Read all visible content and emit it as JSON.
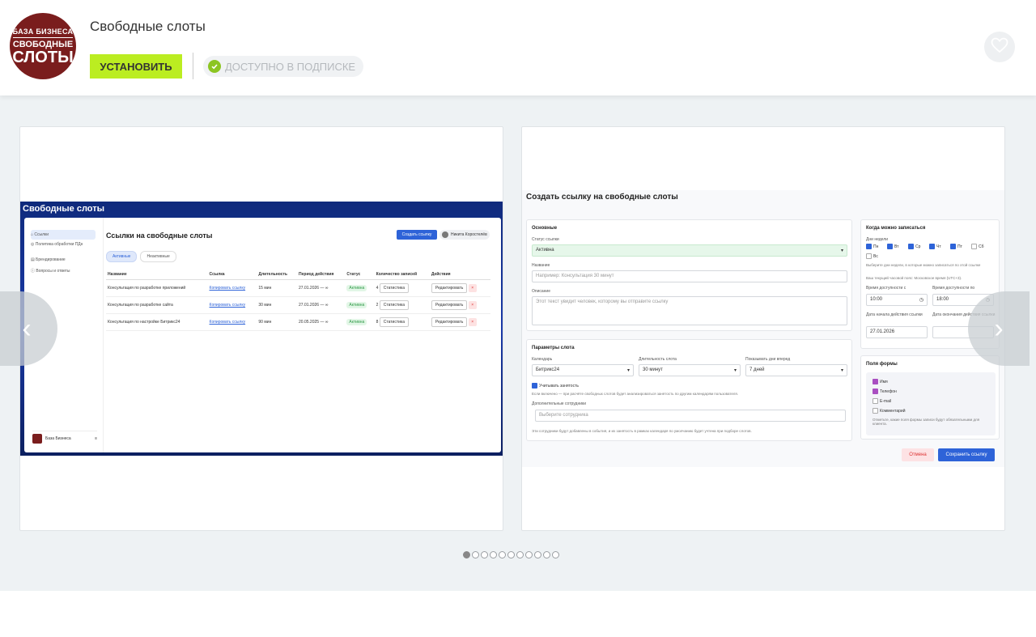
{
  "app": {
    "logo_line1": "БАЗА БИЗНЕСА",
    "logo_line2": "СВОБОДНЫЕ",
    "logo_line3": "СЛОТЫ",
    "title": "Свободные слоты",
    "install_label": "УСТАНОВИТЬ",
    "subscription_label": "ДОСТУПНО В ПОДПИСКЕ"
  },
  "gallery": {
    "dots_count": 11,
    "active_dot": 0
  },
  "slide1": {
    "window_title": "Свободные слоты",
    "sidebar": [
      {
        "label": "Ссылки"
      },
      {
        "label": "Политика обработки ПДн"
      },
      {
        "label": "Брендирование"
      },
      {
        "label": "Вопросы и ответы"
      }
    ],
    "brand_label": "База Бизнеса",
    "heading": "Ссылки на свободные слоты",
    "create_label": "Создать ссылку",
    "user_name": "Никита Коростелёв",
    "tabs": [
      "Активные",
      "Неактивные"
    ],
    "columns": [
      "Название",
      "Ссылка",
      "Длительность",
      "Период действия",
      "Статус",
      "Количество записей",
      "Действия"
    ],
    "rows": [
      {
        "name": "Консультация по разработке приложений",
        "link": "Копировать ссылку",
        "duration": "15 мин",
        "period": "27.01.2026 — ∞",
        "status": "Активна",
        "count": "4",
        "stats": "Статистика",
        "edit": "Редактировать"
      },
      {
        "name": "Консультация по разработке сайта",
        "link": "Копировать ссылку",
        "duration": "30 мин",
        "period": "27.01.2026 — ∞",
        "status": "Активна",
        "count": "2",
        "stats": "Статистика",
        "edit": "Редактировать"
      },
      {
        "name": "Консультация по настройке Битрикс24",
        "link": "Копировать ссылку",
        "duration": "90 мин",
        "period": "20.05.2025 — ∞",
        "status": "Активна",
        "count": "8",
        "stats": "Статистика",
        "edit": "Редактировать"
      }
    ]
  },
  "slide2": {
    "heading": "Создать ссылку на свободные слоты",
    "basic_title": "Основные",
    "status_label": "Статус ссылки",
    "status_value": "Активна",
    "name_label": "Название",
    "name_placeholder": "Например: Консультация 30 минут",
    "desc_label": "Описание",
    "desc_placeholder": "Этот текст увидит человек, которому вы отправите ссылку",
    "params_title": "Параметры слота",
    "calendar_label": "Календарь",
    "calendar_value": "Битрикс24",
    "duration_label": "Длительность слота",
    "duration_value": "30 минут",
    "days_ahead_label": "Показывать дни вперед",
    "days_ahead_value": "7 дней",
    "busy_label": "Учитывать занятость",
    "busy_hint": "Если включено — при расчёте свободных слотов будет анализироваться занятость по другим календарям пользователя.",
    "staff_label": "Дополнительные сотрудники",
    "staff_placeholder": "Выберите сотрудника",
    "staff_hint": "Эти сотрудники будут добавлены в события, и их занятость в рамках календаря по умолчанию будет учтена при подборе слотов.",
    "when_title": "Когда можно записаться",
    "weekdays_label": "Дни недели",
    "weekdays": [
      "Пн",
      "Вт",
      "Ср",
      "Чт",
      "Пт",
      "Сб",
      "Вс"
    ],
    "weekdays_hint": "Выберите дни недели, в которые можно записаться по этой ссылке",
    "tz_hint": "Ваш текущий часовой пояс: Московское время (UTC+3).",
    "time_from_label": "Время доступности с",
    "time_from_value": "10:00",
    "time_to_label": "Время доступности по",
    "time_to_value": "18:00",
    "date_start_label": "Дата начала действия ссылки",
    "date_start_value": "27.01.2026",
    "date_end_label": "Дата окончания действия ссылки",
    "form_title": "Поля формы",
    "fields": [
      "Имя",
      "Телефон",
      "E-mail",
      "Комментарий"
    ],
    "fields_hint": "Отметьте, какие поля формы записи будут обязательными для клиента.",
    "cancel_label": "Отмена",
    "save_label": "Сохранить ссылку"
  }
}
